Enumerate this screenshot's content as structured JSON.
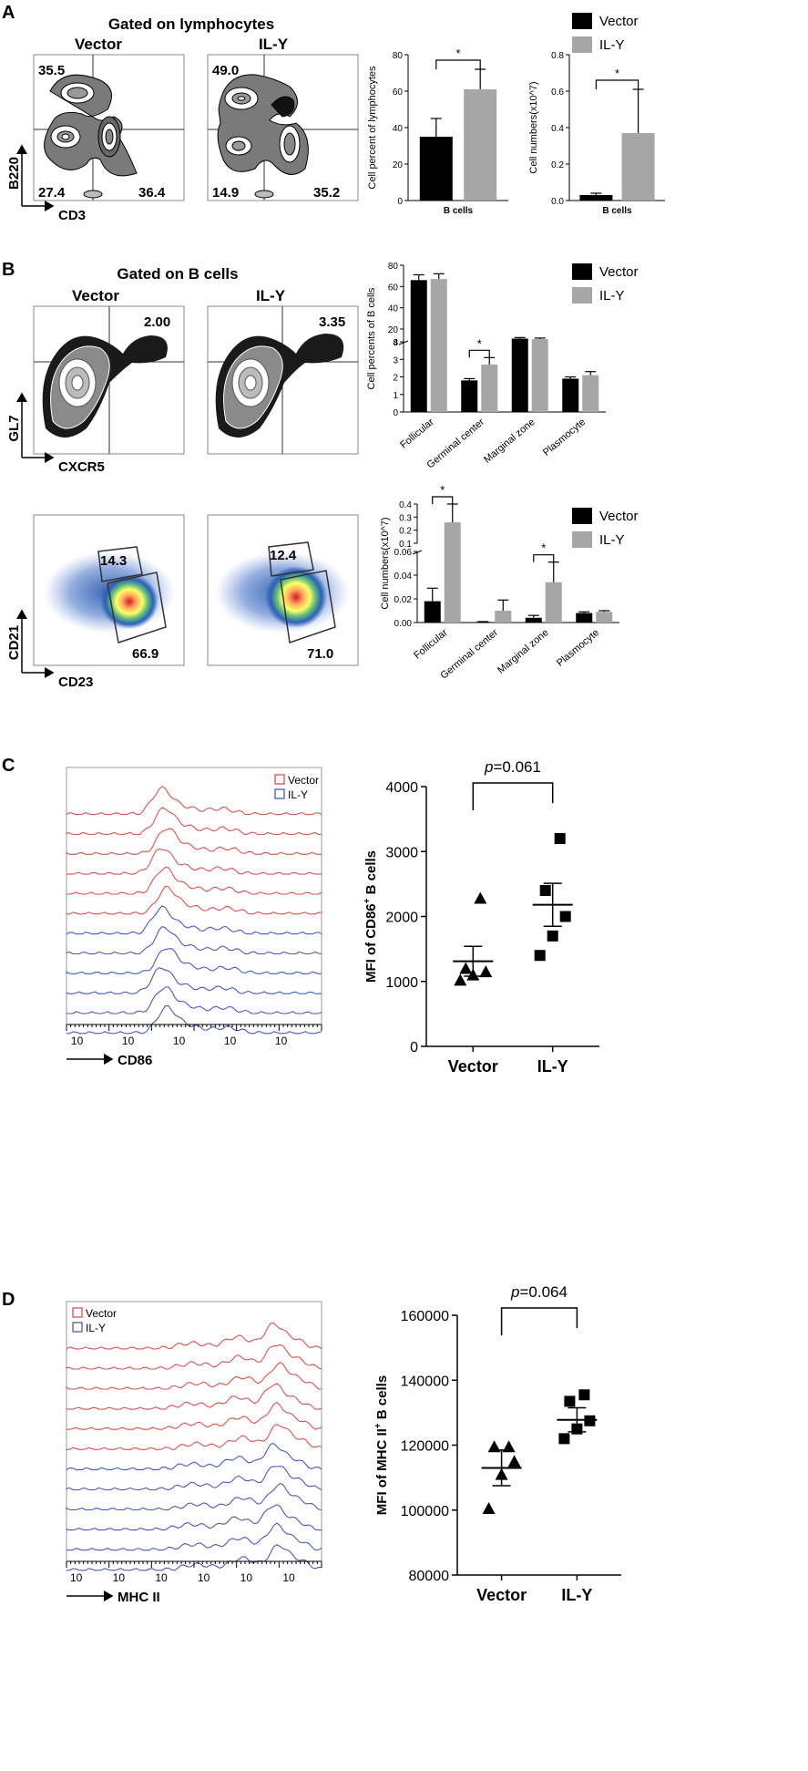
{
  "colors": {
    "vector": "#000000",
    "ily": "#a6a6a6",
    "hist_vector": "#d9534f",
    "hist_ily": "#4a5bb5",
    "axis": "#000000"
  },
  "panels": {
    "A": {
      "letter": "A",
      "title": "Gated on lymphocytes",
      "plots": [
        {
          "label": "Vector",
          "q_ul": "35.5",
          "q_ll": "27.4",
          "q_lr": "36.4"
        },
        {
          "label": "IL-Y",
          "q_ul": "49.0",
          "q_ll": "14.9",
          "q_lr": "35.2"
        }
      ],
      "yaxis": "B220",
      "xaxis": "CD3"
    },
    "B": {
      "letter": "B",
      "title": "Gated on B cells",
      "top_plots": [
        {
          "label": "Vector",
          "q_ur": "2.00"
        },
        {
          "label": "IL-Y",
          "q_ur": "3.35"
        }
      ],
      "top_yaxis": "GL7",
      "top_xaxis": "CXCR5",
      "bottom_plots": [
        {
          "g_top": "14.3",
          "g_bot": "66.9"
        },
        {
          "g_top": "12.4",
          "g_bot": "71.0"
        }
      ],
      "bottom_yaxis": "CD21",
      "bottom_xaxis": "CD23"
    },
    "C": {
      "letter": "C",
      "xaxis": "CD86",
      "legend": [
        "Vector",
        "IL-Y"
      ]
    },
    "D": {
      "letter": "D",
      "xaxis": "MHC II",
      "legend": [
        "Vector",
        "IL-Y"
      ]
    }
  },
  "chart_data": [
    {
      "id": "A1",
      "type": "bar",
      "categories": [
        "B cells"
      ],
      "series": [
        {
          "name": "Vector",
          "values": [
            35
          ],
          "errors": [
            10
          ]
        },
        {
          "name": "IL-Y",
          "values": [
            61
          ],
          "errors": [
            11
          ]
        }
      ],
      "ylabel": "Cell percent of lymphocytes",
      "ylim": [
        0,
        80
      ],
      "yticks": [
        "0",
        "20",
        "40",
        "60",
        "80"
      ],
      "sig": "*"
    },
    {
      "id": "A2",
      "type": "bar",
      "categories": [
        "B cells"
      ],
      "series": [
        {
          "name": "Vector",
          "values": [
            0.03
          ],
          "errors": [
            0.01
          ]
        },
        {
          "name": "IL-Y",
          "values": [
            0.37
          ],
          "errors": [
            0.24
          ]
        }
      ],
      "ylabel": "Cell numbers(x10^7)",
      "ylim": [
        0,
        0.8
      ],
      "yticks": [
        "0.0",
        "0.2",
        "0.4",
        "0.6",
        "0.8"
      ],
      "sig": "*",
      "legend": [
        "Vector",
        "IL-Y"
      ]
    },
    {
      "id": "B1",
      "type": "bar",
      "categories": [
        "Follicular",
        "Germinal center",
        "Marginal zone",
        "Plasmocyte"
      ],
      "series": [
        {
          "name": "Vector",
          "values": [
            66,
            1.8,
            11,
            1.9
          ],
          "errors": [
            5,
            0.1,
            1,
            0.1
          ]
        },
        {
          "name": "IL-Y",
          "values": [
            67,
            2.7,
            10.5,
            2.1
          ],
          "errors": [
            5,
            0.4,
            1,
            0.2
          ]
        }
      ],
      "ylabel": "Cell percents of B cells",
      "ylim": [
        0,
        80
      ],
      "yticks": [
        "0",
        "1",
        "2",
        "3",
        "4",
        "8",
        "20",
        "40",
        "60",
        "80"
      ],
      "sig": "*",
      "legend": [
        "Vector",
        "IL-Y"
      ]
    },
    {
      "id": "B2",
      "type": "bar",
      "categories": [
        "Follicular",
        "Germinal center",
        "Marginal zone",
        "Plasmocyte"
      ],
      "series": [
        {
          "name": "Vector",
          "values": [
            0.018,
            0.0005,
            0.004,
            0.008
          ],
          "errors": [
            0.011,
            0.0003,
            0.002,
            0.001
          ]
        },
        {
          "name": "IL-Y",
          "values": [
            0.26,
            0.01,
            0.034,
            0.009
          ],
          "errors": [
            0.18,
            0.009,
            0.017,
            0.001
          ]
        }
      ],
      "ylabel": "Cell numbers(x10^7)",
      "ylim": [
        0,
        0.4
      ],
      "yticks": [
        "0.00",
        "0.02",
        "0.04",
        "0.06",
        "0.1",
        "0.2",
        "0.3",
        "0.4"
      ],
      "sig": "*",
      "legend": [
        "Vector",
        "IL-Y"
      ]
    },
    {
      "id": "C",
      "type": "scatter",
      "groups": [
        "Vector",
        "IL-Y"
      ],
      "points": [
        [
          1020,
          1100,
          1150,
          1200,
          2280
        ],
        [
          1400,
          1700,
          2000,
          2400,
          3200
        ]
      ],
      "means": [
        1310,
        2180
      ],
      "sem": [
        230,
        330
      ],
      "ylabel": "MFI of CD86+ B cells",
      "ylim": [
        0,
        4000
      ],
      "yticks": [
        "0",
        "1000",
        "2000",
        "3000",
        "4000"
      ],
      "pvalue": "=0.061"
    },
    {
      "id": "D",
      "type": "scatter",
      "groups": [
        "Vector",
        "IL-Y"
      ],
      "points": [
        [
          100500,
          111000,
          115000,
          119500,
          119500
        ],
        [
          122000,
          125000,
          127500,
          133500,
          135500
        ]
      ],
      "means": [
        113000,
        127800
      ],
      "sem": [
        5500,
        3700
      ],
      "ylabel": "MFI of MHC II+ B cells",
      "ylim": [
        80000,
        160000
      ],
      "yticks": [
        "80000",
        "100000",
        "120000",
        "140000",
        "160000"
      ],
      "pvalue": "=0.064"
    }
  ]
}
